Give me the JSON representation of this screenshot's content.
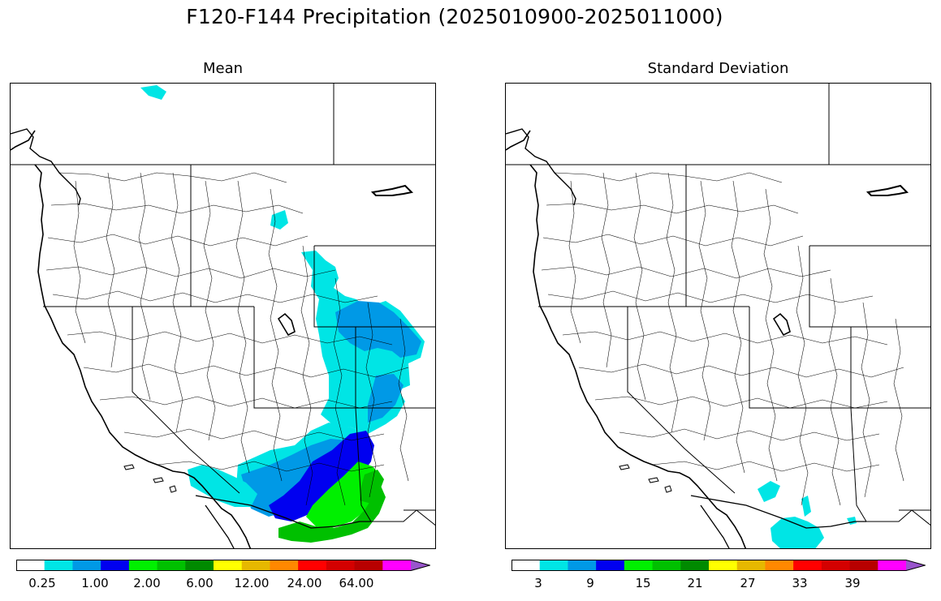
{
  "title": "F120-F144 Precipitation (2025010900-2025011000)",
  "panels": [
    {
      "id": "mean",
      "title": "Mean",
      "colorbar": {
        "colors": [
          "#ffffff",
          "#00e5e5",
          "#0099e6",
          "#0000f0",
          "#00f000",
          "#00c000",
          "#008a00",
          "#ffff00",
          "#e6b800",
          "#ff8800",
          "#ff0000",
          "#d40000",
          "#b80000",
          "#ff00ff",
          "#9955cc"
        ],
        "tick_labels": [
          "0.25",
          "1.00",
          "2.00",
          "6.00",
          "12.00",
          "24.00",
          "64.00"
        ]
      },
      "shaded_regions": [
        {
          "level": "cyan",
          "color": "#00e5e5",
          "area": "Idaho panhandle / Montana border"
        },
        {
          "level": "cyan",
          "color": "#00e5e5",
          "area": "northern Canada edge"
        },
        {
          "level": "cyan-blue",
          "color": "#0099e6",
          "area": "Wyoming / Colorado Rockies"
        },
        {
          "level": "blue",
          "color": "#0000f0",
          "area": "New Mexico / Arizona mountains"
        },
        {
          "level": "green",
          "color": "#00f000",
          "area": "southern New Mexico / Arizona"
        },
        {
          "level": "dark-green",
          "color": "#00c000",
          "area": "southern New Mexico / Mexico border"
        },
        {
          "level": "cyan",
          "color": "#00e5e5",
          "area": "southern California"
        }
      ]
    },
    {
      "id": "stdev",
      "title": "Standard Deviation",
      "colorbar": {
        "colors": [
          "#ffffff",
          "#00e5e5",
          "#0099e6",
          "#0000f0",
          "#00f000",
          "#00c000",
          "#008a00",
          "#ffff00",
          "#e6b800",
          "#ff8800",
          "#ff0000",
          "#d40000",
          "#b80000",
          "#ff00ff",
          "#9955cc"
        ],
        "tick_labels": [
          "3",
          "9",
          "15",
          "21",
          "27",
          "33",
          "39"
        ]
      },
      "shaded_regions": [
        {
          "level": "cyan",
          "color": "#00e5e5",
          "area": "southern Arizona / Mexico border"
        },
        {
          "level": "cyan",
          "color": "#00e5e5",
          "area": "southeast Arizona small basin"
        }
      ]
    }
  ]
}
